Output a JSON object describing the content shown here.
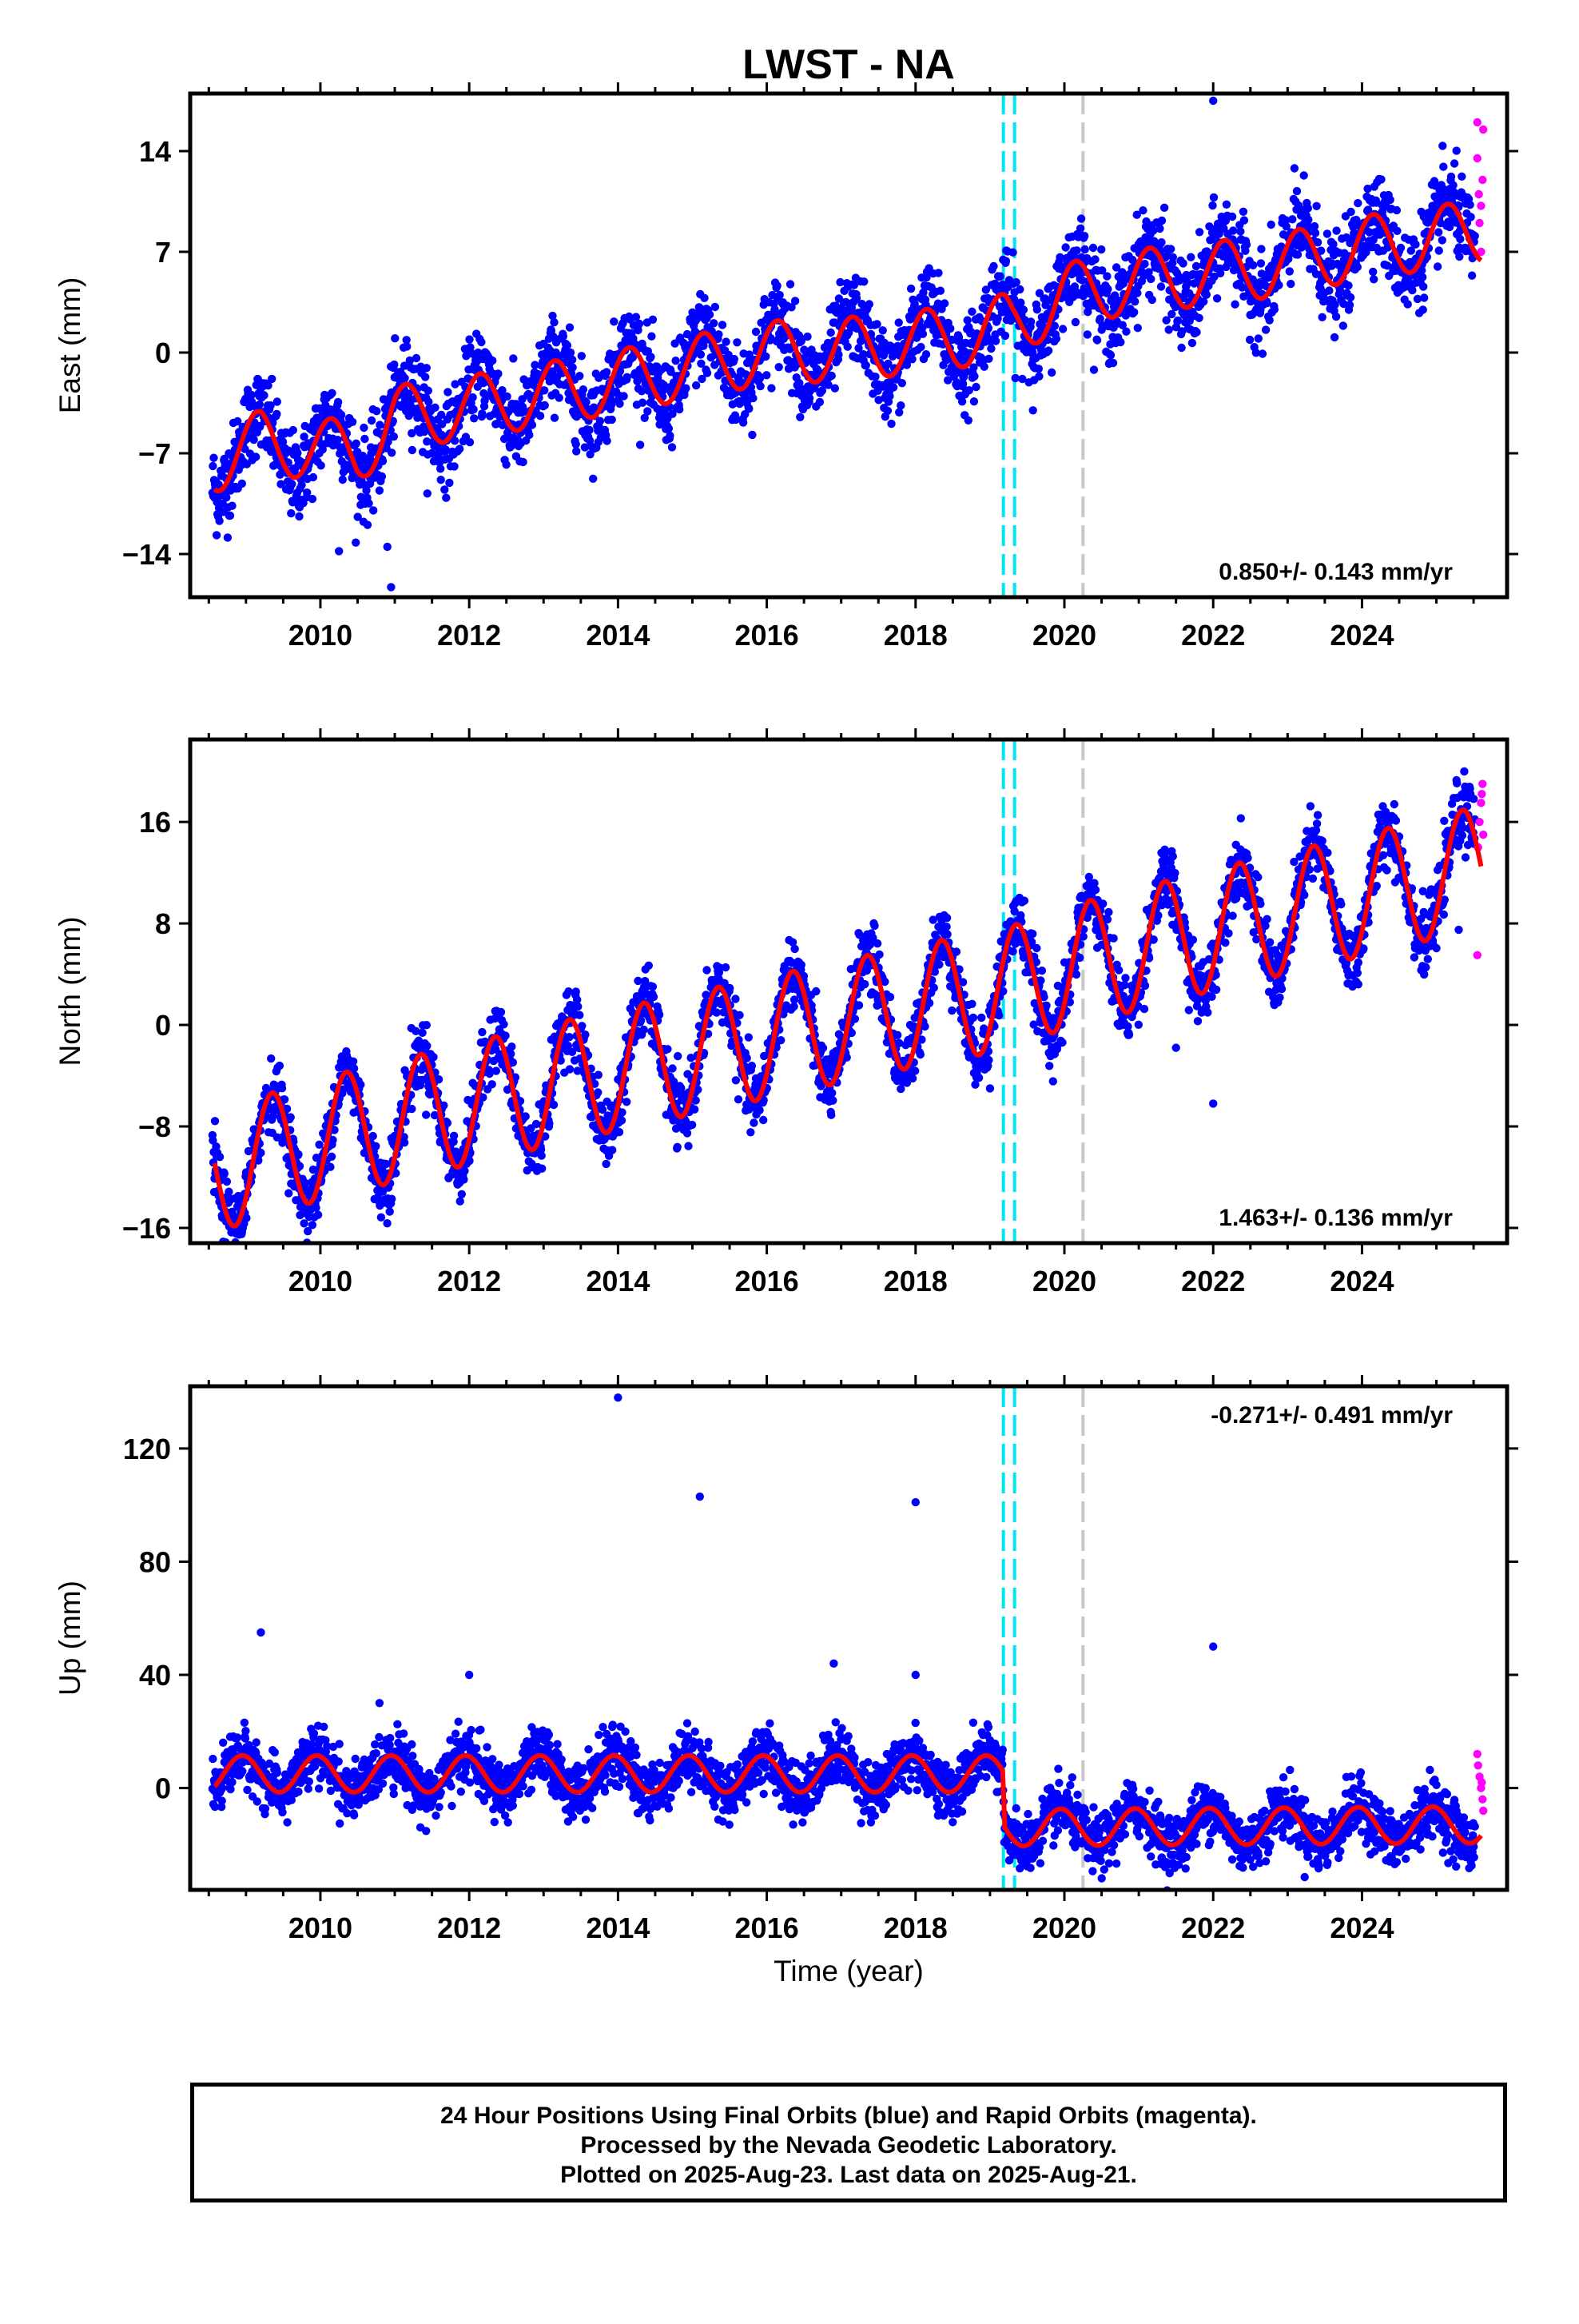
{
  "title": "LWST - NA",
  "xlabel": "Time (year)",
  "footer": {
    "line1": "24 Hour Positions Using Final Orbits (blue) and Rapid Orbits (magenta).",
    "line2": "Processed by the Nevada Geodetic Laboratory.",
    "line3": "Plotted on 2025-Aug-23. Last data on 2025-Aug-21."
  },
  "colors": {
    "final": "#0000ff",
    "rapid": "#ff00ff",
    "model": "#ff0000",
    "antenna_change": "#00e5ee",
    "equipment_change": "#c8c8c8"
  },
  "chart_data": [
    {
      "type": "scatter",
      "component": "East",
      "ylabel": "East (mm)",
      "xlim": [
        2008.25,
        2025.95
      ],
      "ylim": [
        -17,
        18
      ],
      "xticks": [
        2010,
        2012,
        2014,
        2016,
        2018,
        2020,
        2022,
        2024
      ],
      "yticks": [
        -14,
        -7,
        0,
        7,
        14
      ],
      "rate_label": "0.850+/- 0.143 mm/yr",
      "vlines_cyan": [
        2019.18,
        2019.33
      ],
      "vline_gray": [
        2020.25
      ],
      "model_anchors": [
        [
          2008.6,
          -7.5
        ],
        [
          2009.2,
          -6.2
        ],
        [
          2010.5,
          -7.0
        ],
        [
          2011.0,
          -4.5
        ],
        [
          2012.0,
          -3.8
        ],
        [
          2014.0,
          -2.0
        ],
        [
          2016.0,
          0.0
        ],
        [
          2017.0,
          0.2
        ],
        [
          2018.5,
          1.0
        ],
        [
          2019.2,
          1.9
        ],
        [
          2019.3,
          1.8
        ],
        [
          2020.0,
          4.0
        ],
        [
          2021.0,
          5.0
        ],
        [
          2022.0,
          5.5
        ],
        [
          2023.0,
          6.2
        ],
        [
          2024.0,
          7.3
        ],
        [
          2025.0,
          8.0
        ],
        [
          2025.6,
          8.5
        ]
      ],
      "seasonal_amp": 2.2,
      "seasonal_phase": 0.1,
      "noise": 1.5,
      "outliers": [
        [
          2010.9,
          -13.5
        ],
        [
          2010.95,
          -16.3
        ],
        [
          2022.0,
          17.5
        ],
        [
          2010.25,
          -13.8
        ]
      ],
      "rapid_points": [
        [
          2025.55,
          16.0
        ],
        [
          2025.55,
          13.5
        ],
        [
          2025.57,
          11.0
        ],
        [
          2025.58,
          9.0
        ],
        [
          2025.6,
          7.0
        ],
        [
          2025.62,
          12.0
        ],
        [
          2025.63,
          15.5
        ],
        [
          2025.6,
          10.2
        ]
      ],
      "series": [
        {
          "name": "Final Orbits (blue)"
        },
        {
          "name": "Rapid Orbits (magenta)"
        }
      ]
    },
    {
      "type": "scatter",
      "component": "North",
      "ylabel": "North (mm)",
      "xlim": [
        2008.25,
        2025.95
      ],
      "ylim": [
        -17.2,
        22.5
      ],
      "xticks": [
        2010,
        2012,
        2014,
        2016,
        2018,
        2020,
        2022,
        2024
      ],
      "yticks": [
        -16,
        -8,
        0,
        8,
        16
      ],
      "rate_label": "1.463+/- 0.136 mm/yr",
      "vlines_cyan": [
        2019.18,
        2019.33
      ],
      "vline_gray": [
        2020.25
      ],
      "model_anchors": [
        [
          2008.6,
          -11.5
        ],
        [
          2010.0,
          -9.0
        ],
        [
          2012.0,
          -6.2
        ],
        [
          2014.0,
          -3.5
        ],
        [
          2016.0,
          -1.0
        ],
        [
          2018.0,
          1.5
        ],
        [
          2019.2,
          2.8
        ],
        [
          2020.0,
          4.5
        ],
        [
          2022.0,
          7.5
        ],
        [
          2024.0,
          10.2
        ],
        [
          2025.6,
          12.5
        ]
      ],
      "seasonal_amp": 4.8,
      "seasonal_phase": -0.1,
      "noise": 1.3,
      "outliers": [
        [
          2021.5,
          -1.8
        ],
        [
          2022.0,
          -6.2
        ],
        [
          2023.95,
          3.2
        ],
        [
          2025.3,
          7.5
        ],
        [
          2019.0,
          -5.0
        ]
      ],
      "rapid_points": [
        [
          2025.55,
          5.5
        ],
        [
          2025.56,
          14.0
        ],
        [
          2025.58,
          16.0
        ],
        [
          2025.6,
          17.5
        ],
        [
          2025.62,
          19.0
        ],
        [
          2025.63,
          15.0
        ],
        [
          2025.61,
          18.2
        ]
      ],
      "series": [
        {
          "name": "Final Orbits (blue)"
        },
        {
          "name": "Rapid Orbits (magenta)"
        }
      ]
    },
    {
      "type": "scatter",
      "component": "Up",
      "ylabel": "Up (mm)",
      "xlim": [
        2008.25,
        2025.95
      ],
      "ylim": [
        -36,
        142
      ],
      "xticks": [
        2010,
        2012,
        2014,
        2016,
        2018,
        2020,
        2022,
        2024
      ],
      "yticks": [
        0,
        40,
        80,
        120
      ],
      "rate_label": "-0.271+/- 0.491 mm/yr",
      "vlines_cyan": [
        2019.18,
        2019.33
      ],
      "vline_gray": [
        2020.25
      ],
      "model_anchors": [
        [
          2008.6,
          5.0
        ],
        [
          2019.17,
          5.0
        ],
        [
          2019.2,
          -14.0
        ],
        [
          2025.6,
          -13.0
        ]
      ],
      "seasonal_amp": 6.5,
      "seasonal_phase": 0.3,
      "noise": 5.0,
      "outliers": [
        [
          2009.2,
          55.0
        ],
        [
          2014.0,
          138.0
        ],
        [
          2015.1,
          103.0
        ],
        [
          2018.0,
          101.0
        ],
        [
          2018.0,
          40.0
        ],
        [
          2022.0,
          50.0
        ],
        [
          2016.9,
          44.0
        ],
        [
          2012.0,
          40.0
        ]
      ],
      "rapid_points": [
        [
          2025.55,
          12.0
        ],
        [
          2025.56,
          8.0
        ],
        [
          2025.58,
          4.0
        ],
        [
          2025.6,
          0.0
        ],
        [
          2025.62,
          -4.0
        ],
        [
          2025.63,
          -8.0
        ],
        [
          2025.61,
          2.0
        ]
      ],
      "series": [
        {
          "name": "Final Orbits (blue)"
        },
        {
          "name": "Rapid Orbits (magenta)"
        }
      ]
    }
  ]
}
